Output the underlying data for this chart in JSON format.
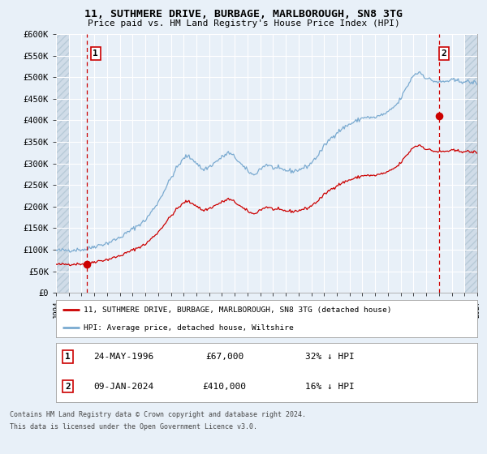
{
  "title": "11, SUTHMERE DRIVE, BURBAGE, MARLBOROUGH, SN8 3TG",
  "subtitle": "Price paid vs. HM Land Registry's House Price Index (HPI)",
  "bg_color": "#e8f0f8",
  "plot_bg_color": "#e8f0f8",
  "hatch_color": "#c8d8e8",
  "grid_color": "#ffffff",
  "red_line_color": "#cc0000",
  "blue_line_color": "#7aaad0",
  "sale1_date": "24-MAY-1996",
  "sale1_price": 67000,
  "sale1_year": 1996.388,
  "sale2_date": "09-JAN-2024",
  "sale2_price": 410000,
  "sale2_year": 2024.025,
  "legend_label_red": "11, SUTHMERE DRIVE, BURBAGE, MARLBOROUGH, SN8 3TG (detached house)",
  "legend_label_blue": "HPI: Average price, detached house, Wiltshire",
  "footer1": "Contains HM Land Registry data © Crown copyright and database right 2024.",
  "footer2": "This data is licensed under the Open Government Licence v3.0.",
  "xmin": 1994.0,
  "xmax": 2027.0,
  "ymin": 0,
  "ymax": 600000,
  "yticks": [
    0,
    50000,
    100000,
    150000,
    200000,
    250000,
    300000,
    350000,
    400000,
    450000,
    500000,
    550000,
    600000
  ],
  "ytick_labels": [
    "£0",
    "£50K",
    "£100K",
    "£150K",
    "£200K",
    "£250K",
    "£300K",
    "£350K",
    "£400K",
    "£450K",
    "£500K",
    "£550K",
    "£600K"
  ],
  "hatch_left_end": 1995.0,
  "hatch_right_start": 2026.0
}
